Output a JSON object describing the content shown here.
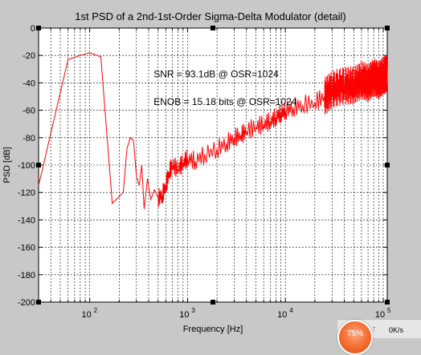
{
  "chart_data": {
    "type": "line",
    "title": "1st PSD of a 2nd-1st-Order Sigma-Delta Modulator (detail)",
    "xlabel": "Frequency [Hz]",
    "ylabel": "PSD [dB]",
    "xscale": "log",
    "xlim": [
      30,
      110000
    ],
    "ylim": [
      -200,
      0
    ],
    "grid": true,
    "x_ticks": [
      100,
      1000,
      10000,
      100000
    ],
    "x_tick_labels": [
      {
        "base": "10",
        "exp": "2"
      },
      {
        "base": "10",
        "exp": "3"
      },
      {
        "base": "10",
        "exp": "4"
      },
      {
        "base": "10",
        "exp": "5"
      }
    ],
    "y_ticks": [
      0,
      -20,
      -40,
      -60,
      -80,
      -100,
      -120,
      -140,
      -160,
      -180,
      -200
    ],
    "y_tick_labels": [
      "0",
      "-20",
      "-40",
      "-60",
      "-80",
      "-100",
      "-120",
      "-140",
      "-160",
      "-180",
      "-200"
    ],
    "annotations": [
      {
        "text": "SNR = 93.1dB @ OSR=1024",
        "x": 450,
        "y": -36
      },
      {
        "text": "ENOB = 15.18 bits @ OSR=1024",
        "x": 450,
        "y": -56
      }
    ],
    "line_color": "#ff0000",
    "series": [
      {
        "x": [
          30,
          60,
          80,
          100,
          130,
          170,
          220,
          240,
          260,
          280,
          300,
          320,
          340,
          360,
          390,
          420,
          460,
          500,
          550,
          600,
          650,
          700,
          800,
          900,
          1000,
          1200,
          1500,
          2000,
          2500,
          3000,
          3500,
          4000,
          5000,
          6000,
          7000,
          8000,
          9000,
          10000,
          12000,
          15000,
          20000,
          25000,
          30000,
          40000,
          50000,
          60000,
          70000,
          80000,
          90000,
          100000,
          110000
        ],
        "y": [
          -115,
          -23,
          -20,
          -18,
          -21,
          -128,
          -120,
          -88,
          -80,
          -82,
          -108,
          -115,
          -100,
          -132,
          -110,
          -125,
          -118,
          -124,
          -122,
          -115,
          -105,
          -100,
          -103,
          -98,
          -95,
          -97,
          -92,
          -88,
          -84,
          -80,
          -78,
          -75,
          -72,
          -70,
          -68,
          -65,
          -62,
          -60,
          -58,
          -56,
          -54,
          -50,
          -45,
          -42,
          -42,
          -38,
          -40,
          -36,
          -38,
          -35,
          -33
        ]
      }
    ]
  },
  "widget": {
    "percent": "75%",
    "arrow": "↑",
    "speed": "0K/s"
  }
}
